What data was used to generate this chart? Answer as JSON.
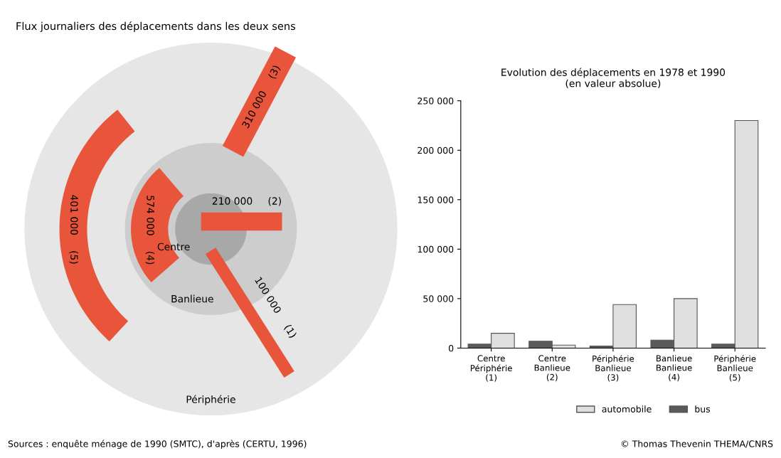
{
  "chart_data": [
    {
      "type": "other",
      "title": "Flux journaliers des déplacements dans les deux sens",
      "categories": [
        "(1)",
        "(2)",
        "(3)",
        "(4)",
        "(5)"
      ],
      "values": [
        100000,
        210000,
        310000,
        574000,
        401000
      ],
      "value_labels": [
        "100 000",
        "210 000",
        "310 000",
        "574 000",
        "401 000"
      ],
      "annotations": [
        "Centre",
        "Banlieue",
        "Périphérie",
        "Sources : enquête ménage de 1990 (SMTC), d'après (CERTU, 1996)"
      ]
    },
    {
      "type": "bar",
      "title": "Evolution des déplacements en 1978 et 1990\n(en valeur absolue)",
      "categories": [
        "Centre\nPériphérie\n(1)",
        "Centre\nBanlieue\n(2)",
        "Périphérie\nBanlieue\n(3)",
        "Banlieue\nBanlieue\n(4)",
        "Périphérie\nBanlieue\n(5)"
      ],
      "series": [
        {
          "name": "bus",
          "color": "#5a5a5a",
          "values": [
            4000,
            7000,
            2000,
            8000,
            4000
          ]
        },
        {
          "name": "automobile",
          "color": "#e0e0e0",
          "values": [
            15000,
            3000,
            44000,
            50000,
            230000
          ]
        }
      ],
      "ylim": [
        0,
        250000
      ],
      "yticks": [
        0,
        {
          "value": 50000,
          "label": "50 000"
        },
        {
          "value": 100000,
          "label": "100 000"
        },
        {
          "value": 150000,
          "label": "150 000"
        },
        {
          "value": 200000,
          "label": "200 000"
        },
        {
          "value": 250000,
          "label": "250 000"
        }
      ],
      "legend": "bottom",
      "grid": false,
      "annotations": [
        "© Thomas Thevenin THEMA/CNRS"
      ]
    }
  ]
}
